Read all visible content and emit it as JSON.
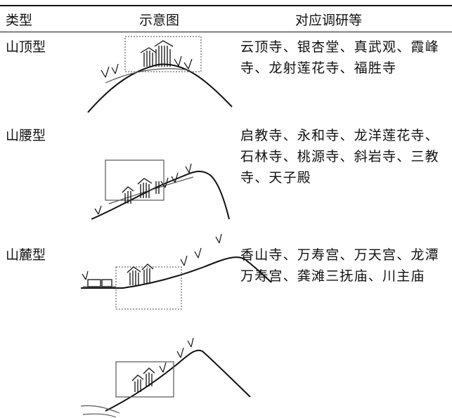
{
  "table": {
    "header": [
      "类型",
      "示意图",
      "对应调研等"
    ],
    "rows": [
      {
        "type": "山顶型",
        "sites": "云顶寺、银杏堂、真武观、霞峰寺、龙射莲花寺、福胜寺"
      },
      {
        "type": "山腰型",
        "sites": "启教寺、永和寺、龙洋莲花寺、石林寺、桃源寺、斜岩寺、三教寺、天子殿"
      },
      {
        "type": "山麓型",
        "sites": "香山寺、万寿宫、万天宫、龙潭万寿宫、龚滩三抚庙、川主庙"
      }
    ]
  }
}
